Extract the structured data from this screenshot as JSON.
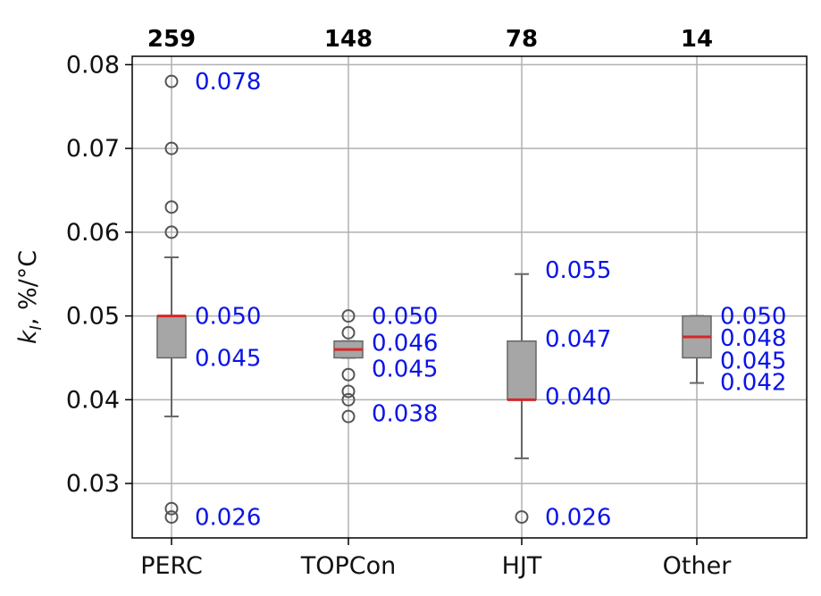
{
  "chart_data": {
    "type": "box",
    "ylabel": "k_I, %/°C",
    "ylim": [
      0.0235,
      0.081
    ],
    "yticks": [
      "0.03",
      "0.04",
      "0.05",
      "0.06",
      "0.07",
      "0.08"
    ],
    "grid": true,
    "categories": [
      "PERC",
      "TOPCon",
      "HJT",
      "Other"
    ],
    "counts": [
      "259",
      "148",
      "78",
      "14"
    ],
    "colors": {
      "box": "#a6a6a6",
      "median": "#d62728",
      "annotation": "#0a14e6",
      "outlier": "#555555"
    },
    "boxes": [
      {
        "category": "PERC",
        "whisker_low": 0.038,
        "q1": 0.045,
        "median": 0.05,
        "q3": 0.05,
        "whisker_high": 0.057,
        "outliers": [
          0.078,
          0.07,
          0.063,
          0.06,
          0.027,
          0.026
        ]
      },
      {
        "category": "TOPCon",
        "whisker_low": 0.045,
        "q1": 0.045,
        "median": 0.046,
        "q3": 0.047,
        "whisker_high": 0.047,
        "outliers": [
          0.05,
          0.048,
          0.043,
          0.041,
          0.04,
          0.038
        ]
      },
      {
        "category": "HJT",
        "whisker_low": 0.033,
        "q1": 0.04,
        "median": 0.04,
        "q3": 0.047,
        "whisker_high": 0.055,
        "outliers": [
          0.026
        ]
      },
      {
        "category": "Other",
        "whisker_low": 0.042,
        "q1": 0.045,
        "median": 0.0475,
        "q3": 0.05,
        "whisker_high": 0.05,
        "outliers": []
      }
    ],
    "annotations": [
      {
        "category": "PERC",
        "labels": [
          {
            "text": "0.078",
            "y": 0.078
          },
          {
            "text": "0.050",
            "y": 0.05
          },
          {
            "text": "0.045",
            "y": 0.045
          },
          {
            "text": "0.026",
            "y": 0.026
          }
        ]
      },
      {
        "category": "TOPCon",
        "labels": [
          {
            "text": "0.050",
            "y": 0.05
          },
          {
            "text": "0.046",
            "y": 0.0468
          },
          {
            "text": "0.045",
            "y": 0.0437
          },
          {
            "text": "0.038",
            "y": 0.0384
          }
        ]
      },
      {
        "category": "HJT",
        "labels": [
          {
            "text": "0.055",
            "y": 0.0555
          },
          {
            "text": "0.047",
            "y": 0.0473
          },
          {
            "text": "0.040",
            "y": 0.0404
          },
          {
            "text": "0.026",
            "y": 0.026
          }
        ]
      },
      {
        "category": "Other",
        "labels": [
          {
            "text": "0.050",
            "y": 0.05
          },
          {
            "text": "0.048",
            "y": 0.0474
          },
          {
            "text": "0.045",
            "y": 0.0447
          },
          {
            "text": "0.042",
            "y": 0.0421
          }
        ]
      }
    ]
  }
}
